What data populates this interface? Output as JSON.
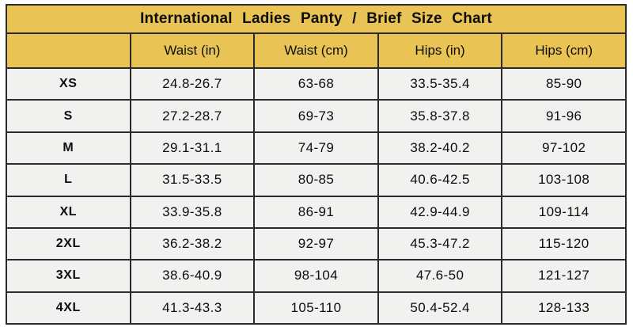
{
  "title": "International Ladies Panty / Brief Size Chart",
  "colors": {
    "header_gold": "#e9c353",
    "cell_background": "#f1f1ef",
    "border": "#2b2b2b",
    "text": "#0d0d0d"
  },
  "chart_data": {
    "type": "table",
    "title": "International Ladies Panty / Brief Size Chart",
    "columns": [
      "",
      "Waist (in)",
      "Waist (cm)",
      "Hips (in)",
      "Hips (cm)"
    ],
    "rows": [
      {
        "size": "XS",
        "values": [
          "24.8-26.7",
          "63-68",
          "33.5-35.4",
          "85-90"
        ]
      },
      {
        "size": "S",
        "values": [
          "27.2-28.7",
          "69-73",
          "35.8-37.8",
          "91-96"
        ]
      },
      {
        "size": "M",
        "values": [
          "29.1-31.1",
          "74-79",
          "38.2-40.2",
          "97-102"
        ]
      },
      {
        "size": "L",
        "values": [
          "31.5-33.5",
          "80-85",
          "40.6-42.5",
          "103-108"
        ]
      },
      {
        "size": "XL",
        "values": [
          "33.9-35.8",
          "86-91",
          "42.9-44.9",
          "109-114"
        ]
      },
      {
        "size": "2XL",
        "values": [
          "36.2-38.2",
          "92-97",
          "45.3-47.2",
          "115-120"
        ]
      },
      {
        "size": "3XL",
        "values": [
          "38.6-40.9",
          "98-104",
          "47.6-50",
          "121-127"
        ]
      },
      {
        "size": "4XL",
        "values": [
          "41.3-43.3",
          "105-110",
          "50.4-52.4",
          "128-133"
        ]
      }
    ]
  }
}
